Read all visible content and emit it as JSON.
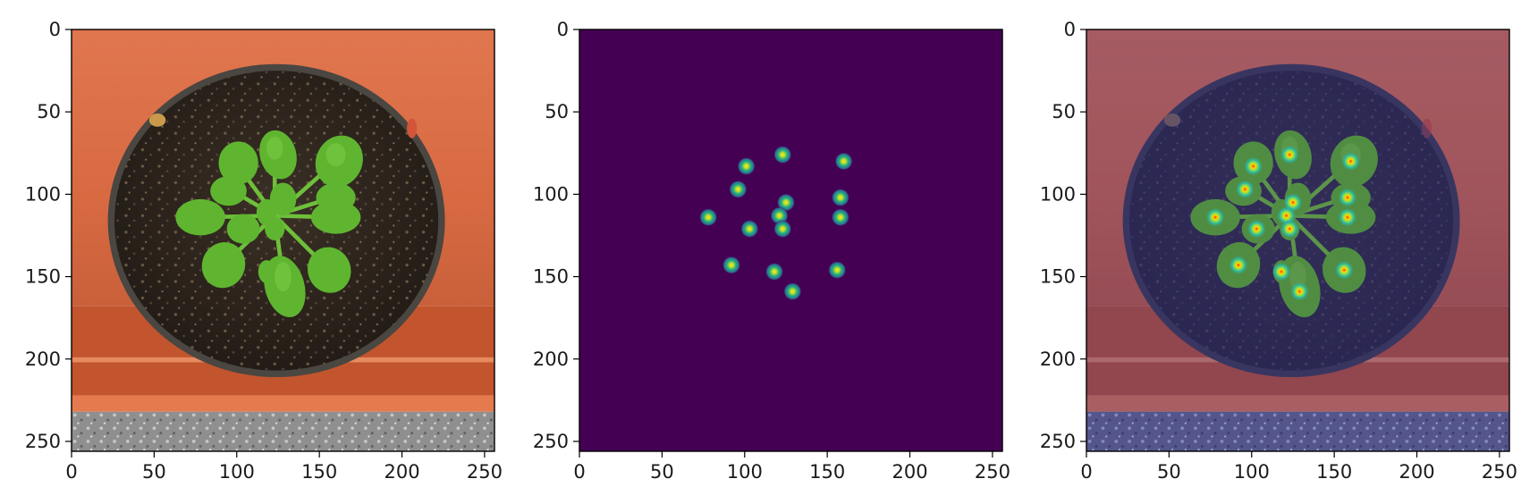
{
  "figure": {
    "panels": [
      {
        "name": "rgb-photo",
        "kind": "photo"
      },
      {
        "name": "heatmap",
        "kind": "heatmap"
      },
      {
        "name": "overlay",
        "kind": "overlay"
      }
    ],
    "x_ticks": [
      0,
      50,
      100,
      150,
      200,
      250
    ],
    "y_ticks": [
      0,
      50,
      100,
      150,
      200,
      250
    ],
    "axis_range": [
      0,
      256
    ]
  },
  "colors": {
    "heatmap_background": "#440154",
    "backdrop_orange": "#e0704a",
    "soil": "#2b241d",
    "leaf": "#5fb530",
    "blob_ring": "#21918c",
    "blob_center": "#fde725",
    "overlay_tint": "#4a2b6b"
  },
  "chart_data": {
    "type": "scatter",
    "title": "",
    "xlabel": "",
    "ylabel": "",
    "xlim": [
      0,
      256
    ],
    "ylim": [
      256,
      0
    ],
    "grid": false,
    "points": [
      {
        "x": 123,
        "y": 76
      },
      {
        "x": 160,
        "y": 80
      },
      {
        "x": 101,
        "y": 83
      },
      {
        "x": 96,
        "y": 97
      },
      {
        "x": 158,
        "y": 102
      },
      {
        "x": 125,
        "y": 105
      },
      {
        "x": 78,
        "y": 114
      },
      {
        "x": 121,
        "y": 113
      },
      {
        "x": 158,
        "y": 114
      },
      {
        "x": 103,
        "y": 121
      },
      {
        "x": 123,
        "y": 121
      },
      {
        "x": 92,
        "y": 143
      },
      {
        "x": 118,
        "y": 147
      },
      {
        "x": 156,
        "y": 146
      },
      {
        "x": 129,
        "y": 159
      }
    ]
  }
}
